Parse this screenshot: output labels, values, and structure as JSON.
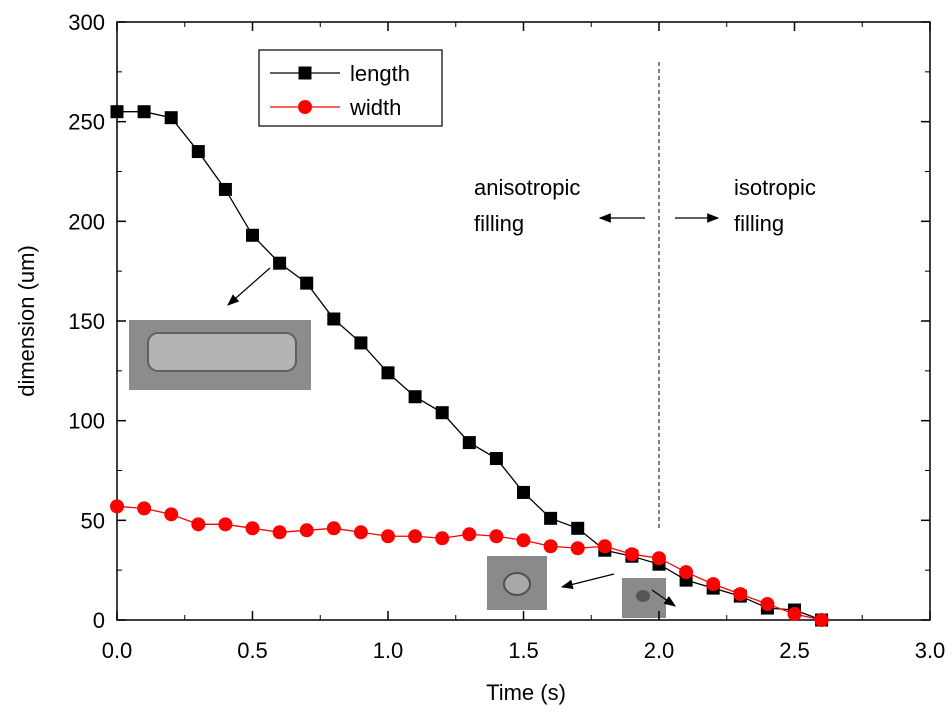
{
  "chart_data": {
    "type": "line",
    "x_label": "Time (s)",
    "y_label": "dimension (um)",
    "x": [
      0,
      0.1,
      0.2,
      0.3,
      0.4,
      0.5,
      0.6,
      0.7,
      0.8,
      0.9,
      1.0,
      1.1,
      1.2,
      1.3,
      1.4,
      1.5,
      1.6,
      1.7,
      1.8,
      1.9,
      2.0,
      2.1,
      2.2,
      2.3,
      2.4,
      2.5,
      2.6
    ],
    "series": [
      {
        "name": "length",
        "color": "#000000",
        "marker": "square",
        "values": [
          255,
          255,
          252,
          235,
          216,
          193,
          179,
          169,
          151,
          139,
          124,
          112,
          104,
          89,
          81,
          64,
          51,
          46,
          35,
          32,
          28,
          20,
          16,
          12,
          6,
          5,
          0
        ]
      },
      {
        "name": "width",
        "color": "#ff0000",
        "marker": "circle",
        "values": [
          57,
          56,
          53,
          48,
          48,
          46,
          44,
          45,
          46,
          44,
          42,
          42,
          41,
          43,
          42,
          40,
          37,
          36,
          37,
          33,
          31,
          24,
          18,
          13,
          8,
          3,
          0
        ]
      }
    ],
    "xlim": [
      0,
      3.0
    ],
    "xticks": [
      {
        "value": 0,
        "label": "0.0"
      },
      {
        "value": 0.5,
        "label": "0.5"
      },
      {
        "value": 1.0,
        "label": "1.0"
      },
      {
        "value": 1.5,
        "label": "1.5"
      },
      {
        "value": 2.0,
        "label": "2.0"
      },
      {
        "value": 2.5,
        "label": "2.5"
      },
      {
        "value": 3.0,
        "label": "3.0"
      }
    ],
    "ylim": [
      0,
      300
    ],
    "yticks": [
      0,
      50,
      100,
      150,
      200,
      250,
      300
    ],
    "annotations": [
      "anisotropic",
      "filling",
      "isotropic",
      "filling"
    ],
    "legend": "top-left"
  }
}
